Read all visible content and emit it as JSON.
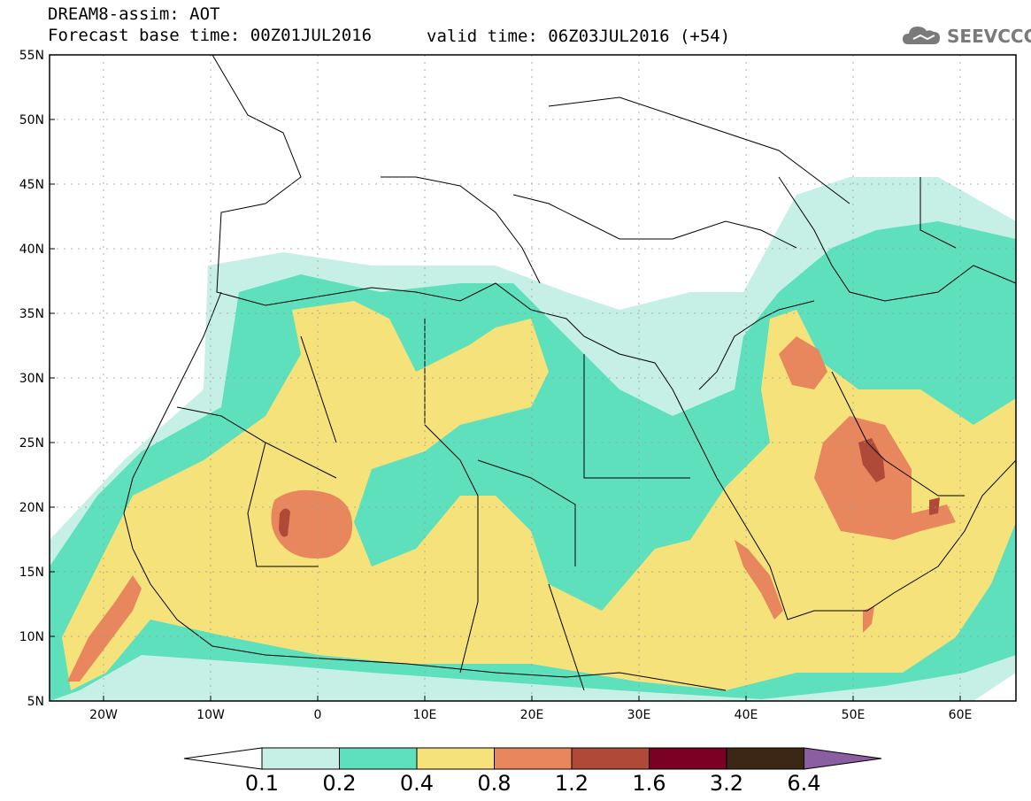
{
  "title": {
    "line1": "DREAM8-assim: AOT",
    "base": "Forecast base time: 00Z01JUL2016",
    "valid": "valid time: 06Z03JUL2016 (+54)"
  },
  "logo": {
    "text": "SEEVCCC",
    "icon": "cloud-icon"
  },
  "lat_labels": [
    "55N",
    "50N",
    "45N",
    "40N",
    "35N",
    "30N",
    "25N",
    "20N",
    "15N",
    "10N",
    "5N"
  ],
  "lon_labels": [
    "20W",
    "10W",
    "0",
    "10E",
    "20E",
    "30E",
    "40E",
    "50E",
    "60E"
  ],
  "colorbar": {
    "labels": [
      "0.1",
      "0.2",
      "0.4",
      "0.8",
      "1.2",
      "1.6",
      "3.2",
      "6.4"
    ],
    "colors": [
      "#ffffff",
      "#c6f0e6",
      "#5ee0bc",
      "#f5e27a",
      "#e8865e",
      "#b04a38",
      "#7a0024",
      "#3c2616",
      "#8a5ea0"
    ]
  }
}
